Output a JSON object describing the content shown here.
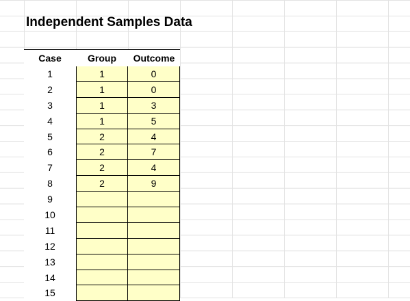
{
  "title": "Independent Samples Data",
  "columns": {
    "case": "Case",
    "group": "Group",
    "outcome": "Outcome"
  },
  "input_fill_color": "#ffffc8",
  "rows": [
    {
      "case": "1",
      "group": "1",
      "outcome": "0"
    },
    {
      "case": "2",
      "group": "1",
      "outcome": "0"
    },
    {
      "case": "3",
      "group": "1",
      "outcome": "3"
    },
    {
      "case": "4",
      "group": "1",
      "outcome": "5"
    },
    {
      "case": "5",
      "group": "2",
      "outcome": "4"
    },
    {
      "case": "6",
      "group": "2",
      "outcome": "7"
    },
    {
      "case": "7",
      "group": "2",
      "outcome": "4"
    },
    {
      "case": "8",
      "group": "2",
      "outcome": "9"
    },
    {
      "case": "9",
      "group": "",
      "outcome": ""
    },
    {
      "case": "10",
      "group": "",
      "outcome": ""
    },
    {
      "case": "11",
      "group": "",
      "outcome": ""
    },
    {
      "case": "12",
      "group": "",
      "outcome": ""
    },
    {
      "case": "13",
      "group": "",
      "outcome": ""
    },
    {
      "case": "14",
      "group": "",
      "outcome": ""
    },
    {
      "case": "15",
      "group": "",
      "outcome": ""
    }
  ]
}
